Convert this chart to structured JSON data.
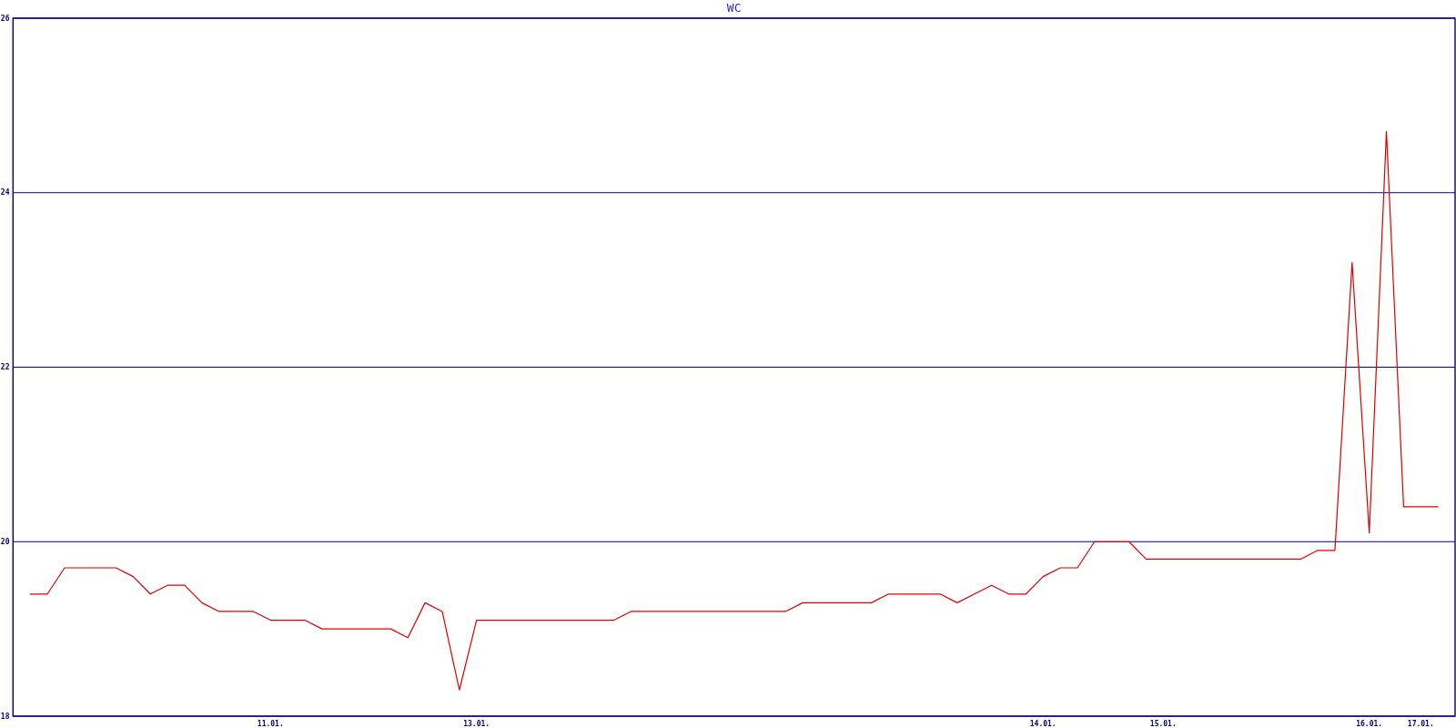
{
  "chart_data": {
    "type": "line",
    "title": "WC",
    "categories": [
      null,
      null,
      null,
      null,
      null,
      null,
      null,
      null,
      null,
      null,
      null,
      null,
      null,
      null,
      "11.01.",
      null,
      null,
      null,
      null,
      null,
      null,
      null,
      null,
      null,
      null,
      null,
      "13.01.",
      null,
      null,
      null,
      null,
      null,
      null,
      null,
      null,
      null,
      null,
      null,
      null,
      null,
      null,
      null,
      null,
      null,
      null,
      null,
      null,
      null,
      null,
      null,
      null,
      null,
      null,
      null,
      null,
      null,
      null,
      null,
      null,
      "14.01.",
      null,
      null,
      null,
      null,
      null,
      null,
      "15.01.",
      null,
      null,
      null,
      null,
      null,
      null,
      null,
      null,
      null,
      null,
      null,
      "16.01.",
      null,
      null,
      "17.01.",
      null
    ],
    "series": [
      {
        "color": "#dd0000",
        "values": [
          19.4,
          19.4,
          19.7,
          19.7,
          19.7,
          19.7,
          19.6,
          19.4,
          19.5,
          19.5,
          19.3,
          19.2,
          19.2,
          19.2,
          19.1,
          19.1,
          19.1,
          19.0,
          19.0,
          19.0,
          19.0,
          19.0,
          18.9,
          19.3,
          19.2,
          18.3,
          19.1,
          19.1,
          19.1,
          19.1,
          19.1,
          19.1,
          19.1,
          19.1,
          19.1,
          19.2,
          19.2,
          19.2,
          19.2,
          19.2,
          19.2,
          19.2,
          19.2,
          19.2,
          19.2,
          19.3,
          19.3,
          19.3,
          19.3,
          19.3,
          19.4,
          19.4,
          19.4,
          19.4,
          19.3,
          19.4,
          19.5,
          19.4,
          19.4,
          19.6,
          19.7,
          19.7,
          20.0,
          20.0,
          20.0,
          19.8,
          19.8,
          19.8,
          19.8,
          19.8,
          19.8,
          19.8,
          19.8,
          19.8,
          19.8,
          19.9,
          19.9,
          23.2,
          20.1,
          24.7,
          20.4,
          20.4,
          20.4
        ]
      }
    ],
    "ylim": [
      18,
      26
    ],
    "yticks": [
      18,
      20,
      22,
      24,
      26
    ],
    "grid": "y"
  }
}
